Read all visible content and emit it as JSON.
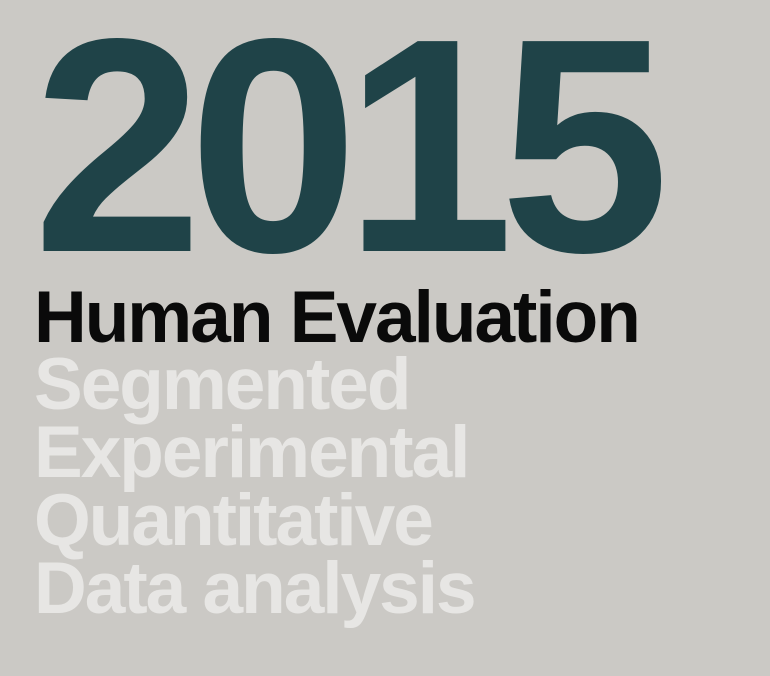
{
  "year": "2015",
  "heading": "Human Evaluation",
  "keywords": [
    "Segmented",
    "Experimental",
    "Quantitative",
    "Data analysis"
  ],
  "colors": {
    "background": "#cbc9c5",
    "year": "#1f4348",
    "heading": "#0a0a0a",
    "keywords": "#e7e6e4"
  }
}
